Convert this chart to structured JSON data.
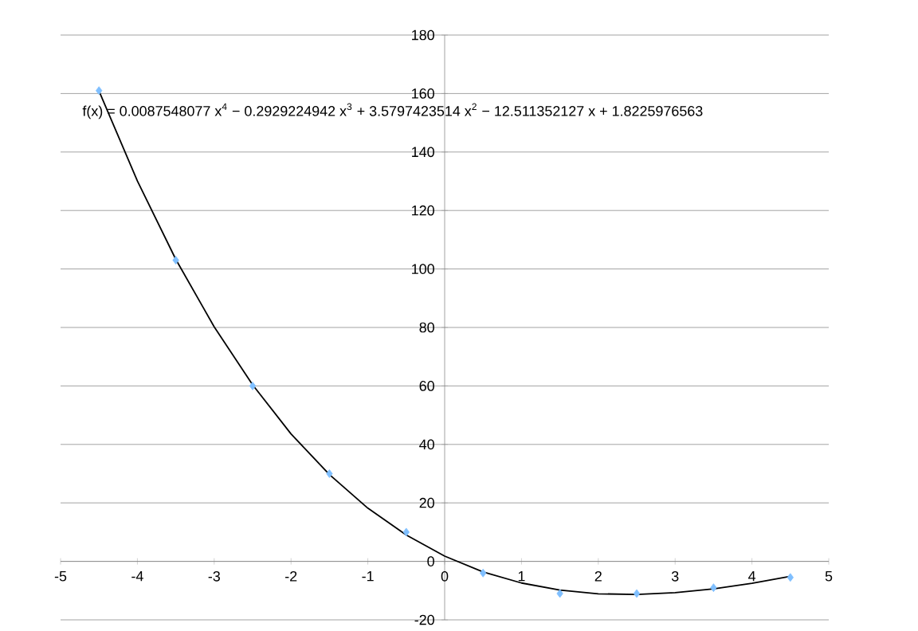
{
  "chart_data": {
    "type": "scatter",
    "annotations": [
      "f(x) = 0.0087548077 x$^{4}$ − 0.2929224942 x$^{3}$ + 3.5797423514 x$^{2}$ − 12.511352127 x + 1.8225976563"
    ],
    "x": [
      -4.5,
      -3.5,
      -2.5,
      -1.5,
      -0.5,
      0.5,
      1.5,
      2.5,
      3.5,
      4.5
    ],
    "series": [
      {
        "color": "#7fbfff",
        "marker": "diamond",
        "values": [
          161,
          103,
          60,
          30,
          10,
          -4,
          -11,
          -11,
          -9,
          -5.5
        ]
      },
      {
        "type": "line",
        "color": "#000000",
        "marker": "none",
        "x": [
          -4.5,
          -4,
          -3.5,
          -3,
          -2.5,
          -2,
          -1.5,
          -1,
          -0.5,
          0,
          0.5,
          1,
          1.5,
          2,
          2.5,
          3,
          3.5,
          4,
          4.5
        ],
        "values": [
          160.9,
          130.1,
          103.3,
          80.2,
          60.4,
          43.6,
          29.7,
          18.2,
          9.0,
          1.8,
          -3.6,
          -7.4,
          -9.8,
          -11.1,
          -11.3,
          -10.7,
          -9.4,
          -7.5,
          -5.1
        ]
      }
    ],
    "xlim": [
      -5,
      5
    ],
    "ylim": [
      -20,
      180
    ],
    "xticks": [
      -5,
      -4,
      -3,
      -2,
      -1,
      0,
      1,
      2,
      3,
      4,
      5
    ],
    "yticks": [
      -20,
      0,
      20,
      40,
      60,
      80,
      100,
      120,
      140,
      160,
      180
    ],
    "grid": "y"
  }
}
